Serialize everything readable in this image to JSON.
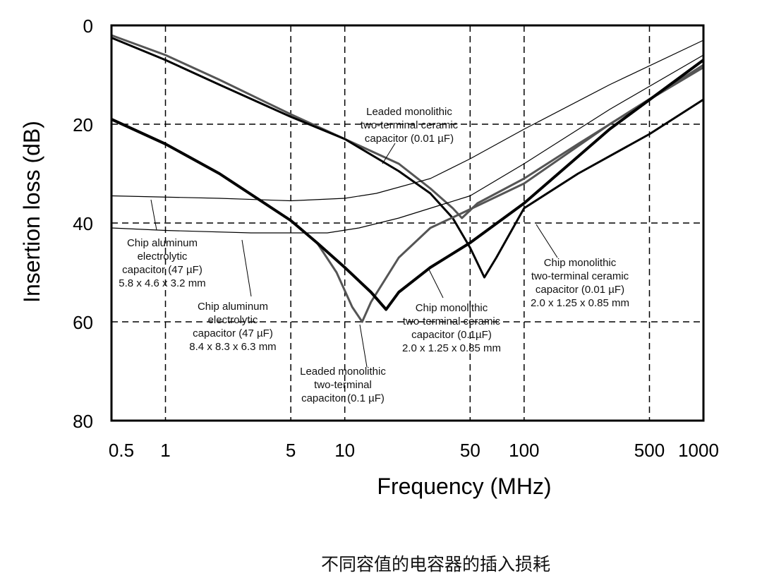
{
  "chart_data": {
    "type": "line",
    "title": "",
    "xlabel": "Frequency (MHz)",
    "ylabel": "Insertion loss (dB)",
    "x_scale": "log",
    "xlim": [
      0.5,
      1000
    ],
    "ylim": [
      0,
      80
    ],
    "y_inverted": true,
    "grid": "dashed at x=1,5,10,50,100,500 and y=20,40,60",
    "x_ticks": [
      0.5,
      1,
      5,
      10,
      50,
      100,
      500,
      1000
    ],
    "x_tick_labels": [
      "0.5",
      "1",
      "5",
      "10",
      "50",
      "100",
      "500",
      "1000"
    ],
    "y_ticks": [
      0,
      20,
      40,
      60,
      80
    ],
    "y_tick_labels": [
      "0",
      "20",
      "40",
      "60",
      "80"
    ],
    "x_grid": [
      1,
      5,
      10,
      50,
      100,
      500
    ],
    "y_grid": [
      20,
      40,
      60
    ],
    "series": [
      {
        "name": "Leaded monolithic two-terminal ceramic capacitor (0.01 µF)",
        "color": "#555555",
        "style": "thick",
        "points": [
          [
            0.5,
            2
          ],
          [
            1,
            6
          ],
          [
            2,
            11
          ],
          [
            5,
            18
          ],
          [
            10,
            23
          ],
          [
            20,
            28
          ],
          [
            30,
            33
          ],
          [
            40,
            37
          ],
          [
            45,
            39
          ],
          [
            55,
            36
          ],
          [
            100,
            31
          ],
          [
            200,
            24
          ],
          [
            500,
            15
          ],
          [
            1000,
            8.5
          ]
        ]
      },
      {
        "name": "Chip monolithic two-terminal ceramic capacitor (0.01 µF) 2.0 x 1.25 x 0.85 mm",
        "color": "#000000",
        "style": "thick",
        "points": [
          [
            0.5,
            2.5
          ],
          [
            1,
            7
          ],
          [
            2,
            12
          ],
          [
            5,
            18.5
          ],
          [
            10,
            23
          ],
          [
            20,
            29.5
          ],
          [
            30,
            34
          ],
          [
            40,
            39
          ],
          [
            50,
            45
          ],
          [
            60,
            51
          ],
          [
            70,
            47
          ],
          [
            100,
            37
          ],
          [
            200,
            30
          ],
          [
            500,
            22
          ],
          [
            1000,
            15
          ]
        ]
      },
      {
        "name": "Leaded monolithic two-terminal capacitor (0.1 µF)",
        "color": "#555555",
        "style": "thick",
        "points": [
          [
            0.5,
            19
          ],
          [
            1,
            24
          ],
          [
            2,
            30
          ],
          [
            5,
            39.5
          ],
          [
            7,
            44
          ],
          [
            9,
            50
          ],
          [
            11,
            57
          ],
          [
            12.5,
            60
          ],
          [
            14,
            56
          ],
          [
            20,
            47
          ],
          [
            30,
            41
          ],
          [
            45,
            38
          ],
          [
            100,
            32
          ],
          [
            300,
            20
          ],
          [
            1000,
            8
          ]
        ]
      },
      {
        "name": "Chip monolithic two-terminal ceramic capacitor (0.1µF) 2.0 x 1.25 x 0.85 mm",
        "color": "#000000",
        "style": "thickest",
        "points": [
          [
            0.5,
            19
          ],
          [
            1,
            24
          ],
          [
            2,
            30
          ],
          [
            5,
            39.5
          ],
          [
            7,
            44
          ],
          [
            10,
            49
          ],
          [
            14,
            54
          ],
          [
            17,
            57.5
          ],
          [
            20,
            54
          ],
          [
            30,
            49
          ],
          [
            50,
            44
          ],
          [
            100,
            36
          ],
          [
            300,
            21
          ],
          [
            1000,
            7
          ]
        ]
      },
      {
        "name": "Chip aluminum electrolytic capacitor (47 µF) 5.8 x 4.6 x 3.2 mm",
        "color": "#000000",
        "style": "thin",
        "points": [
          [
            0.5,
            34.5
          ],
          [
            2,
            35
          ],
          [
            5,
            35.5
          ],
          [
            10,
            35
          ],
          [
            15,
            34
          ],
          [
            30,
            31
          ],
          [
            50,
            27
          ],
          [
            100,
            21
          ],
          [
            300,
            12
          ],
          [
            1000,
            3
          ]
        ]
      },
      {
        "name": "Chip aluminum electrolytic capacitor (47 µF) 8.4 x 8.3 x 6.3 mm",
        "color": "#000000",
        "style": "thin",
        "points": [
          [
            0.5,
            41
          ],
          [
            1,
            41.5
          ],
          [
            3,
            42
          ],
          [
            8,
            42
          ],
          [
            12,
            41
          ],
          [
            20,
            39
          ],
          [
            50,
            34.5
          ],
          [
            100,
            28
          ],
          [
            300,
            17
          ],
          [
            1000,
            6
          ]
        ]
      }
    ],
    "annotations": [
      {
        "lines": [
          "Leaded monolithic",
          "two-terminal ceramic",
          "capacitor (0.01 µF)"
        ]
      },
      {
        "lines": [
          "Chip monolithic",
          "two-terminal ceramic",
          "capacitor (0.01 µF)",
          "2.0 x 1.25 x 0.85 mm"
        ]
      },
      {
        "lines": [
          "Chip monolithic",
          "two-terminal ceramic",
          "capacitor (0.1µF)",
          "2.0 x 1.25 x 0.85 mm"
        ]
      },
      {
        "lines": [
          "Leaded monolithic",
          "two-terminal",
          "capacitor (0.1 µF)"
        ]
      },
      {
        "lines": [
          "Chip aluminum",
          "electrolytic",
          "capacitor (47 µF)",
          "5.8 x 4.6 x 3.2 mm"
        ]
      },
      {
        "lines": [
          "Chip aluminum",
          "electrolytic",
          "capacitor (47 µF)",
          "8.4 x 8.3 x 6.3 mm"
        ]
      }
    ]
  },
  "caption": "不同容值的电容器的插入损耗"
}
